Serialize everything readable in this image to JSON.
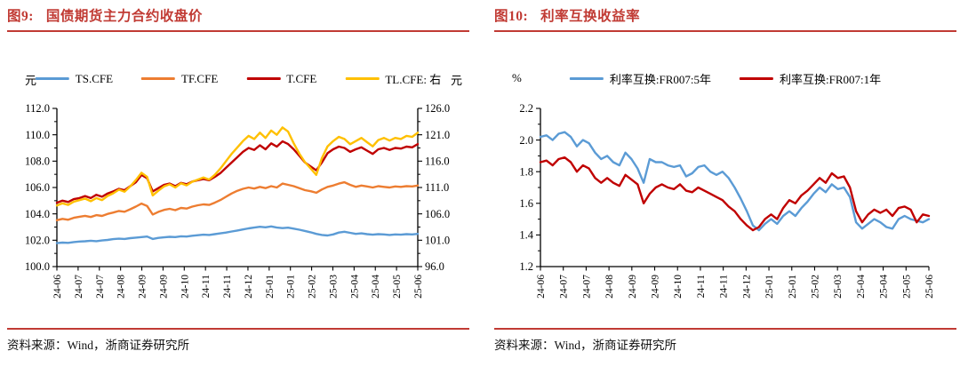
{
  "page": {
    "background": "#ffffff"
  },
  "colors": {
    "title_red": "#C13B34",
    "rule_red": "#C13B34",
    "axis_black": "#000000",
    "series_blue": "#5B9BD5",
    "series_orange": "#ED7D31",
    "series_dark_red": "#C00000",
    "series_yellow": "#FFC000"
  },
  "left_panel": {
    "figure_label": "图9:",
    "title": "国债期货主力合约收盘价",
    "left_axis_unit": "元",
    "right_axis_unit": "元",
    "source": "资料来源：Wind，浙商证券研究所"
  },
  "right_panel": {
    "figure_label": "图10:",
    "title": "利率互换收益率",
    "axis_unit": "%",
    "source": "资料来源：Wind，浙商证券研究所"
  },
  "chart_data": [
    {
      "type": "line",
      "title": "国债期货主力合约收盘价",
      "legend_position": "top",
      "grid": false,
      "x_labels": [
        "24-06",
        "24-07",
        "24-07",
        "24-08",
        "24-09",
        "24-09",
        "24-10",
        "24-11",
        "24-11",
        "24-12",
        "25-01",
        "25-01",
        "25-02",
        "25-03",
        "25-04",
        "25-04",
        "25-05",
        "25-06"
      ],
      "axes": {
        "left": {
          "min": 100,
          "max": 112,
          "decimals": 1,
          "ticks": [
            100,
            102,
            104,
            106,
            108,
            110,
            112
          ],
          "unit": "元"
        },
        "right": {
          "min": 96,
          "max": 126,
          "decimals": 1,
          "ticks": [
            96,
            101,
            106,
            111,
            116,
            121,
            126
          ],
          "unit": "元"
        }
      },
      "layout": {
        "plot_left": 56,
        "plot_right": 462,
        "plot_top": 24,
        "plot_bottom": 202
      },
      "series": [
        {
          "name": "TS.CFE",
          "color": "#5B9BD5",
          "axis": "left",
          "values": [
            101.78,
            101.82,
            101.8,
            101.86,
            101.9,
            101.92,
            101.96,
            101.93,
            101.98,
            102.02,
            102.08,
            102.12,
            102.1,
            102.16,
            102.2,
            102.24,
            102.28,
            102.1,
            102.18,
            102.22,
            102.26,
            102.24,
            102.3,
            102.28,
            102.34,
            102.38,
            102.42,
            102.4,
            102.46,
            102.52,
            102.58,
            102.66,
            102.74,
            102.82,
            102.9,
            102.96,
            103.02,
            102.98,
            103.05,
            102.96,
            102.92,
            102.95,
            102.88,
            102.8,
            102.7,
            102.6,
            102.48,
            102.4,
            102.36,
            102.44,
            102.58,
            102.64,
            102.56,
            102.48,
            102.52,
            102.46,
            102.42,
            102.46,
            102.44,
            102.4,
            102.44,
            102.42,
            102.46,
            102.44,
            102.48
          ]
        },
        {
          "name": "TF.CFE",
          "color": "#ED7D31",
          "axis": "left",
          "values": [
            103.52,
            103.62,
            103.55,
            103.7,
            103.78,
            103.85,
            103.76,
            103.9,
            103.84,
            104.0,
            104.1,
            104.22,
            104.16,
            104.35,
            104.55,
            104.78,
            104.6,
            103.95,
            104.15,
            104.3,
            104.38,
            104.28,
            104.45,
            104.4,
            104.55,
            104.65,
            104.72,
            104.68,
            104.85,
            105.05,
            105.3,
            105.55,
            105.75,
            105.9,
            106.0,
            105.92,
            106.05,
            105.95,
            106.1,
            106.0,
            106.3,
            106.2,
            106.1,
            105.95,
            105.8,
            105.72,
            105.6,
            105.85,
            106.05,
            106.15,
            106.3,
            106.4,
            106.2,
            106.05,
            106.15,
            106.08,
            106.0,
            106.1,
            106.05,
            106.0,
            106.08,
            106.05,
            106.1,
            106.08,
            106.15
          ]
        },
        {
          "name": "T.CFE",
          "color": "#C00000",
          "axis": "left",
          "values": [
            104.85,
            105.0,
            104.9,
            105.12,
            105.2,
            105.35,
            105.2,
            105.45,
            105.3,
            105.55,
            105.7,
            105.9,
            105.8,
            106.1,
            106.4,
            106.95,
            106.7,
            105.7,
            105.95,
            106.2,
            106.3,
            106.1,
            106.35,
            106.25,
            106.45,
            106.55,
            106.65,
            106.55,
            106.8,
            107.1,
            107.5,
            107.9,
            108.3,
            108.7,
            109.0,
            108.85,
            109.2,
            108.9,
            109.35,
            109.1,
            109.5,
            109.3,
            108.9,
            108.4,
            107.9,
            107.6,
            107.3,
            107.9,
            108.6,
            108.9,
            109.1,
            109.0,
            108.7,
            108.9,
            109.05,
            108.8,
            108.55,
            108.9,
            109.0,
            108.85,
            109.0,
            108.95,
            109.1,
            109.05,
            109.3
          ]
        },
        {
          "name": "TL.CFE: 右",
          "color": "#FFC000",
          "axis": "right",
          "values": [
            107.6,
            108.0,
            107.7,
            108.3,
            108.6,
            108.9,
            108.4,
            109.0,
            108.6,
            109.4,
            109.9,
            110.6,
            110.2,
            111.2,
            112.4,
            113.8,
            113.0,
            109.5,
            110.4,
            111.2,
            111.6,
            111.0,
            111.8,
            111.4,
            112.1,
            112.5,
            112.9,
            112.5,
            113.4,
            114.6,
            116.0,
            117.4,
            118.6,
            119.8,
            120.8,
            120.2,
            121.4,
            120.4,
            121.8,
            121.0,
            122.4,
            121.6,
            119.4,
            117.4,
            115.8,
            114.6,
            113.4,
            116.6,
            118.8,
            119.8,
            120.6,
            120.2,
            119.2,
            119.8,
            120.4,
            119.6,
            118.8,
            120.0,
            120.4,
            119.9,
            120.4,
            120.2,
            120.8,
            120.6,
            121.4
          ]
        }
      ]
    },
    {
      "type": "line",
      "title": "利率互换收益率",
      "legend_position": "top",
      "grid": false,
      "x_labels": [
        "24-06",
        "24-07",
        "24-07",
        "24-08",
        "24-09",
        "24-09",
        "24-10",
        "24-11",
        "24-11",
        "24-12",
        "25-01",
        "25-01",
        "25-02",
        "25-03",
        "25-04",
        "25-04",
        "25-05",
        "25-06"
      ],
      "axes": {
        "left": {
          "min": 1.2,
          "max": 2.2,
          "decimals": 1,
          "ticks": [
            1.2,
            1.4,
            1.6,
            1.8,
            2.0,
            2.2
          ],
          "unit": "%"
        }
      },
      "layout": {
        "plot_left": 52,
        "plot_right": 489,
        "plot_top": 24,
        "plot_bottom": 202
      },
      "series": [
        {
          "name": "利率互换:FR007:5年",
          "color": "#5B9BD5",
          "axis": "left",
          "values": [
            2.02,
            2.03,
            2.0,
            2.04,
            2.05,
            2.02,
            1.96,
            2.0,
            1.98,
            1.92,
            1.88,
            1.9,
            1.86,
            1.84,
            1.92,
            1.88,
            1.82,
            1.73,
            1.88,
            1.86,
            1.86,
            1.84,
            1.83,
            1.84,
            1.77,
            1.79,
            1.83,
            1.84,
            1.8,
            1.78,
            1.8,
            1.76,
            1.7,
            1.63,
            1.55,
            1.46,
            1.43,
            1.47,
            1.5,
            1.47,
            1.52,
            1.55,
            1.52,
            1.57,
            1.61,
            1.66,
            1.7,
            1.67,
            1.72,
            1.69,
            1.7,
            1.64,
            1.48,
            1.44,
            1.47,
            1.5,
            1.48,
            1.45,
            1.44,
            1.5,
            1.52,
            1.5,
            1.49,
            1.48,
            1.5
          ]
        },
        {
          "name": "利率互换:FR007:1年",
          "color": "#C00000",
          "axis": "left",
          "values": [
            1.86,
            1.87,
            1.84,
            1.88,
            1.89,
            1.86,
            1.8,
            1.84,
            1.82,
            1.76,
            1.73,
            1.76,
            1.73,
            1.71,
            1.78,
            1.75,
            1.72,
            1.6,
            1.66,
            1.7,
            1.72,
            1.7,
            1.69,
            1.72,
            1.68,
            1.67,
            1.7,
            1.68,
            1.66,
            1.64,
            1.62,
            1.58,
            1.55,
            1.5,
            1.46,
            1.43,
            1.45,
            1.5,
            1.53,
            1.5,
            1.57,
            1.62,
            1.6,
            1.65,
            1.68,
            1.72,
            1.76,
            1.73,
            1.79,
            1.76,
            1.77,
            1.7,
            1.55,
            1.48,
            1.53,
            1.56,
            1.54,
            1.56,
            1.52,
            1.57,
            1.58,
            1.56,
            1.48,
            1.53,
            1.52
          ]
        }
      ]
    }
  ]
}
